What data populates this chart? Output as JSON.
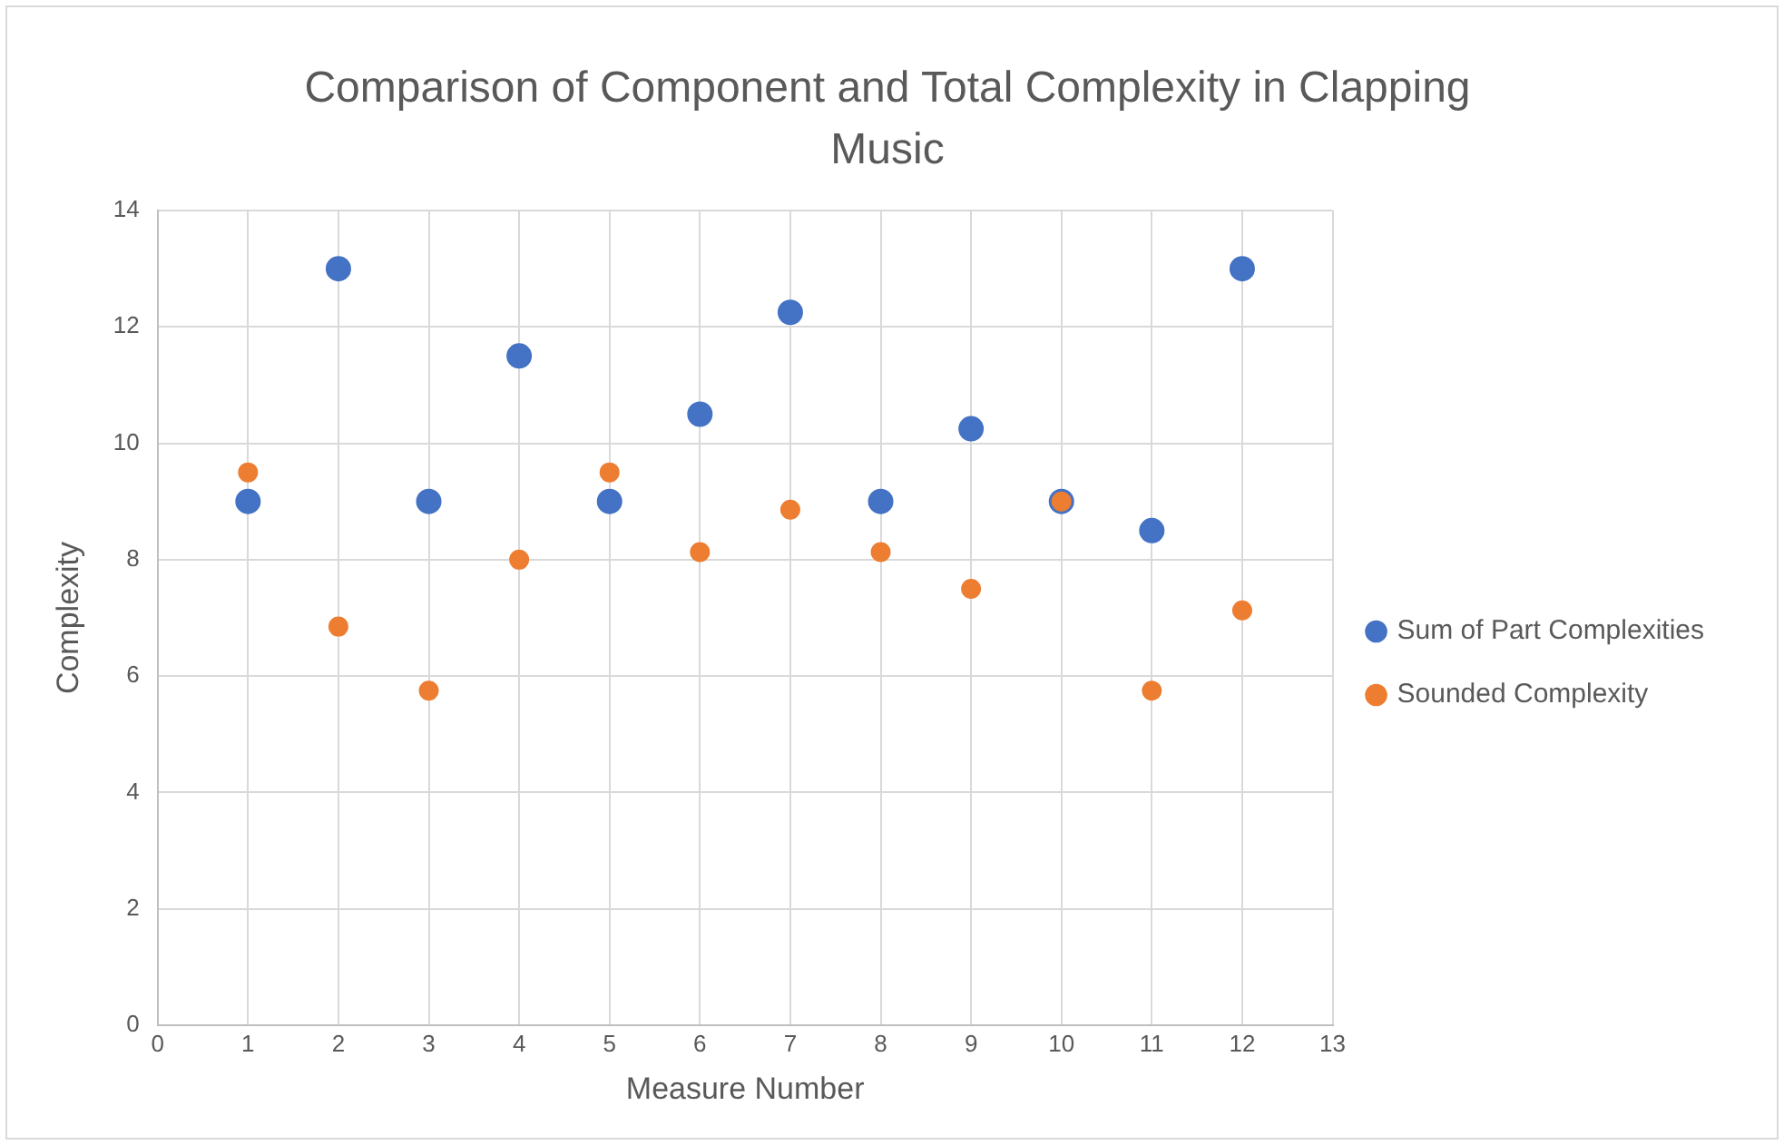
{
  "chart_data": {
    "type": "scatter",
    "title": "Comparison of Component and Total Complexity in Clapping Music",
    "xlabel": "Measure Number",
    "ylabel": "Complexity",
    "x": [
      1,
      2,
      3,
      4,
      5,
      6,
      7,
      8,
      9,
      10,
      11,
      12
    ],
    "series": [
      {
        "name": "Sum of Part Complexities",
        "color": "#4472c4",
        "values": [
          9,
          13,
          9,
          11.5,
          9,
          10.5,
          12.25,
          9,
          10.25,
          9,
          8.5,
          13
        ]
      },
      {
        "name": "Sounded Complexity",
        "color": "#ed7d31",
        "values": [
          9.5,
          6.85,
          5.75,
          8,
          9.5,
          8.13,
          8.86,
          8.13,
          7.5,
          9,
          5.75,
          7.13
        ]
      }
    ],
    "xlim": [
      0,
      13
    ],
    "xticks": [
      0,
      1,
      2,
      3,
      4,
      5,
      6,
      7,
      8,
      9,
      10,
      11,
      12,
      13
    ],
    "ylim": [
      0,
      14
    ],
    "yticks": [
      0,
      2,
      4,
      6,
      8,
      10,
      12,
      14
    ],
    "grid": true,
    "legend": "right",
    "marker": "circle"
  }
}
